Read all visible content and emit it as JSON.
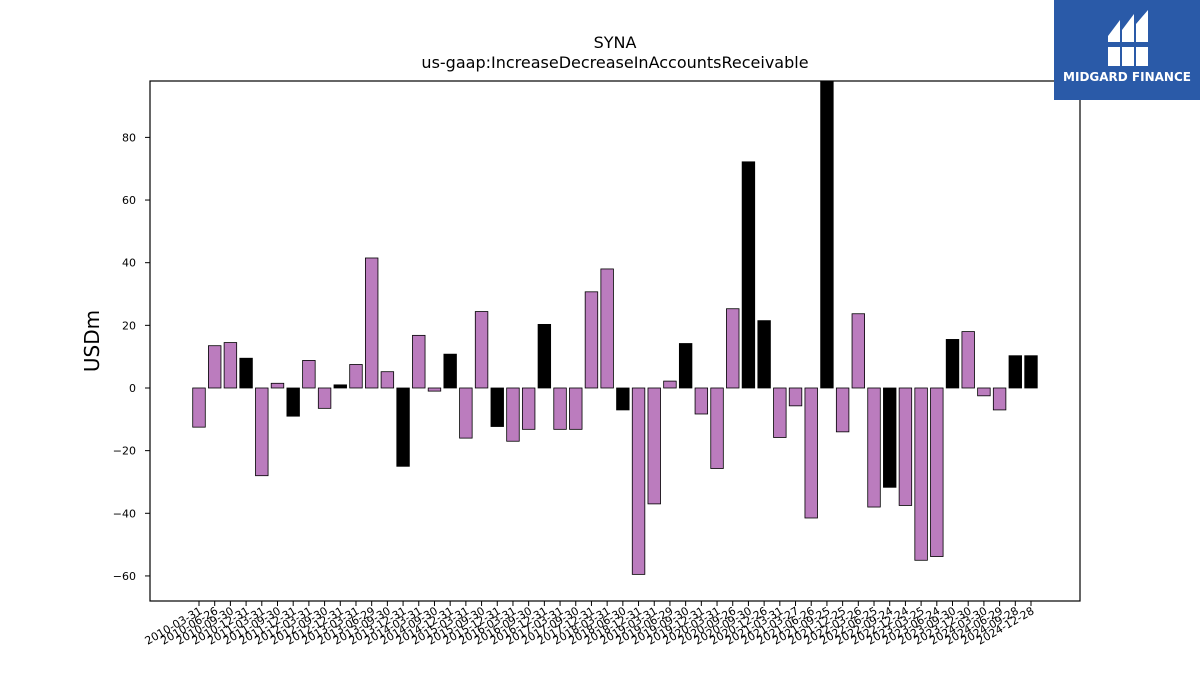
{
  "brand": {
    "name": "MIDGARD FINANCE",
    "bg_color": "#2a5aa8",
    "icon": "midgard-logo-mark-icon"
  },
  "chart_data": {
    "type": "bar",
    "title": "SYNA",
    "subtitle": "us-gaap:IncreaseDecreaseInAccountsReceivable",
    "xlabel": "",
    "ylabel": "USDm",
    "ylim": [
      -68,
      98
    ],
    "yticks": [
      -60,
      -40,
      -20,
      0,
      20,
      40,
      60,
      80
    ],
    "grid": false,
    "colors": {
      "standard": "#bb7cbe",
      "highlight": "#000000"
    },
    "categories": [
      "2010-03-31",
      "2010-06-26",
      "2010-09-30",
      "2010-12-31",
      "2011-03-31",
      "2011-09-30",
      "2011-12-31",
      "2012-03-31",
      "2012-09-30",
      "2012-12-31",
      "2013-03-31",
      "2013-06-29",
      "2013-09-30",
      "2013-12-31",
      "2014-03-31",
      "2014-09-30",
      "2014-12-31",
      "2015-03-31",
      "2015-09-30",
      "2015-12-31",
      "2016-03-31",
      "2016-09-30",
      "2016-12-31",
      "2017-03-31",
      "2017-09-30",
      "2017-12-31",
      "2018-03-31",
      "2018-06-30",
      "2018-12-31",
      "2019-03-31",
      "2019-06-29",
      "2019-09-30",
      "2019-12-31",
      "2020-03-31",
      "2020-09-26",
      "2020-09-30",
      "2020-12-26",
      "2021-03-31",
      "2021-03-27",
      "2021-06-26",
      "2021-09-25",
      "2021-12-25",
      "2022-03-26",
      "2022-06-25",
      "2022-09-24",
      "2022-12-24",
      "2023-03-25",
      "2023-06-24",
      "2023-09-30",
      "2023-12-30",
      "2024-03-30",
      "2024-06-29",
      "2024-09-28",
      "2024-12-28"
    ],
    "values": [
      -12.5,
      13.5,
      14.5,
      9.5,
      -28,
      1.5,
      -9,
      8.8,
      -6.5,
      1,
      7.5,
      41.5,
      5.2,
      -25,
      16.8,
      -1,
      10.8,
      -16,
      24.4,
      -12.3,
      -17,
      -13.2,
      20.3,
      -13.2,
      -13.2,
      30.7,
      38,
      -7,
      -59.5,
      -37,
      2.2,
      14.2,
      -8.3,
      -25.7,
      25.3,
      72.2,
      21.5,
      -15.8,
      -5.7,
      -41.5,
      98,
      -14,
      23.7,
      -38,
      -31.7,
      -37.5,
      -55,
      -53.8,
      15.5,
      18,
      -2.5,
      -7,
      10.3,
      10.3
    ],
    "highlight": [
      false,
      false,
      false,
      true,
      false,
      false,
      true,
      false,
      false,
      true,
      false,
      false,
      false,
      true,
      false,
      false,
      true,
      false,
      false,
      true,
      false,
      false,
      true,
      false,
      false,
      false,
      false,
      true,
      false,
      false,
      false,
      true,
      false,
      false,
      false,
      true,
      true,
      false,
      false,
      false,
      true,
      false,
      false,
      false,
      true,
      false,
      false,
      false,
      true,
      false,
      false,
      false,
      true,
      true
    ]
  }
}
